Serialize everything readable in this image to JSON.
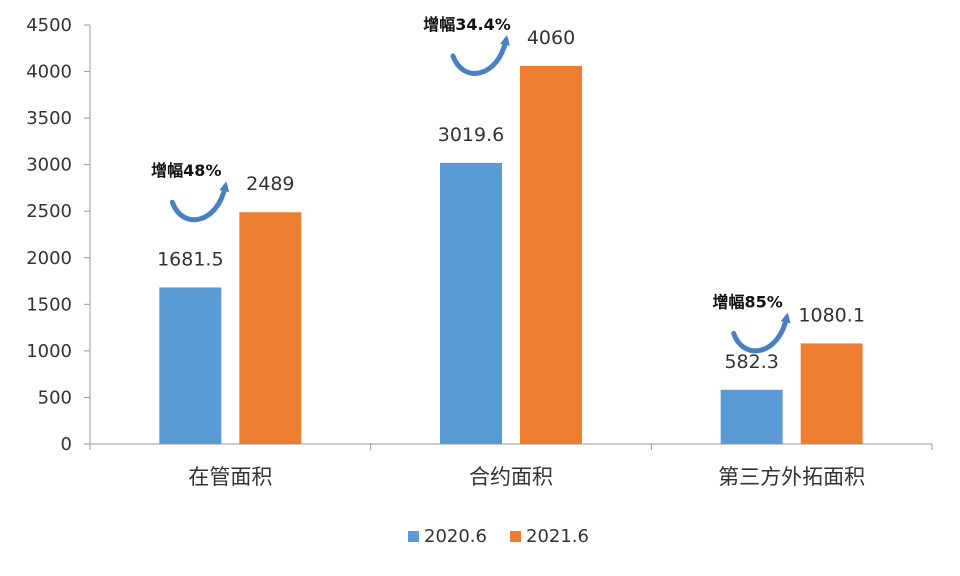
{
  "chart_data": {
    "type": "bar",
    "categories": [
      "在管面积",
      "合约面积",
      "第三方外拓面积"
    ],
    "series": [
      {
        "name": "2020.6",
        "values": [
          1681.5,
          3019.6,
          582.3
        ],
        "labels": [
          "1681.5",
          "3019.6",
          "582.3"
        ],
        "color": "#5b9bd5"
      },
      {
        "name": "2021.6",
        "values": [
          2489,
          4060,
          1080.1
        ],
        "labels": [
          "2489",
          "4060",
          "1080.1"
        ],
        "color": "#ed7d31"
      }
    ],
    "annotations": [
      "增幅48%",
      "增幅34.4%",
      "增幅85%"
    ],
    "arrow_color": "#4a7fc1",
    "ylim": [
      0,
      4500
    ],
    "yticks": [
      "0",
      "500",
      "1000",
      "1500",
      "2000",
      "2500",
      "3000",
      "3500",
      "4000",
      "4500"
    ],
    "title": "",
    "xlabel": "",
    "ylabel": "",
    "grid": false,
    "legend_position": "bottom"
  }
}
